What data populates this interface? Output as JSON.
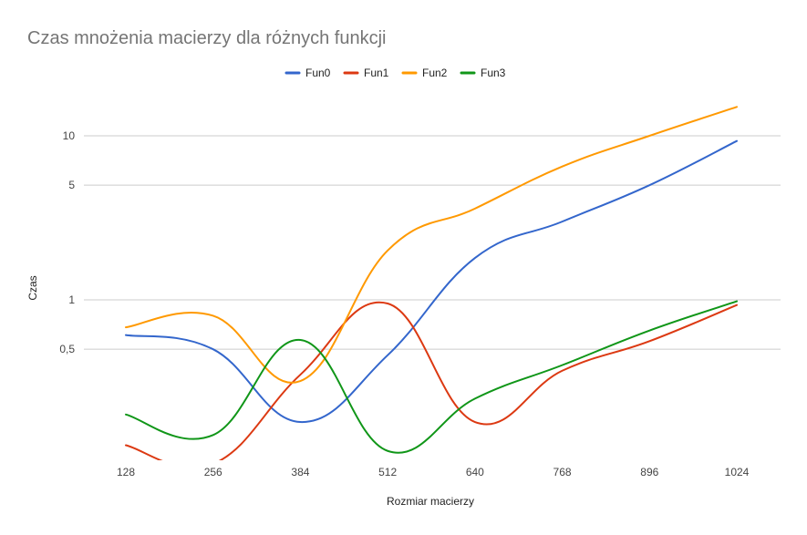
{
  "chart_data": {
    "type": "line",
    "title": "Czas mnożenia macierzy dla różnych funkcji",
    "xlabel": "Rozmiar macierzy",
    "ylabel": "Czas",
    "y_scale": "log",
    "ylim": [
      0.1,
      20
    ],
    "y_ticks": [
      0.5,
      1,
      5,
      10
    ],
    "y_tick_labels": [
      "0,5",
      "1",
      "5",
      "10"
    ],
    "categories": [
      "128",
      "256",
      "384",
      "512",
      "640",
      "768",
      "896",
      "1024"
    ],
    "grid": true,
    "legend_position": "top",
    "series": [
      {
        "name": "Fun0",
        "color": "#3366cc",
        "values": [
          0.61,
          0.5,
          0.18,
          0.46,
          1.8,
          3.0,
          5.0,
          9.3
        ]
      },
      {
        "name": "Fun1",
        "color": "#dc3912",
        "values": [
          0.13,
          0.1,
          0.35,
          0.95,
          0.18,
          0.37,
          0.56,
          0.93
        ]
      },
      {
        "name": "Fun2",
        "color": "#ff9900",
        "values": [
          0.68,
          0.8,
          0.32,
          2.0,
          3.6,
          6.5,
          10.0,
          15.0
        ]
      },
      {
        "name": "Fun3",
        "color": "#109618",
        "values": [
          0.2,
          0.15,
          0.57,
          0.12,
          0.25,
          0.4,
          0.65,
          0.98
        ]
      }
    ]
  }
}
